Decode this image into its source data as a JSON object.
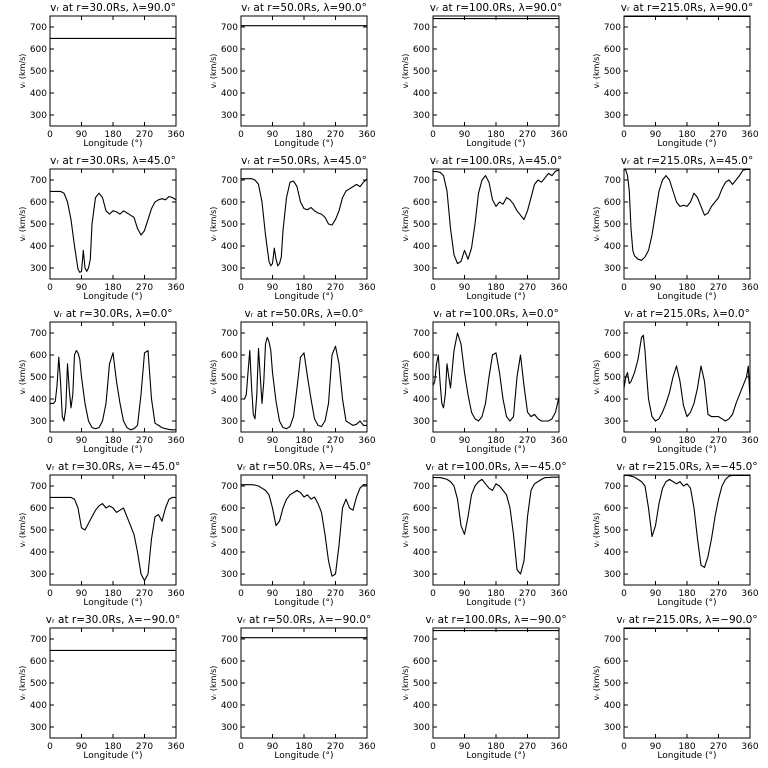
{
  "charts": [
    {
      "type": "line",
      "title": "vᵣ at r=30.0Rs, λ=90.0°",
      "xlabel": "Longitude (°)",
      "ylabel": "vᵣ (km/s)",
      "xlim": [
        0,
        360
      ],
      "ylim": [
        250,
        750
      ],
      "x": [
        0,
        360
      ],
      "y": [
        648,
        648
      ]
    },
    {
      "type": "line",
      "title": "vᵣ at r=50.0Rs, λ=90.0°",
      "xlabel": "Longitude (°)",
      "ylabel": "vᵣ (km/s)",
      "xlim": [
        0,
        360
      ],
      "ylim": [
        250,
        750
      ],
      "x": [
        0,
        360
      ],
      "y": [
        706,
        706
      ]
    },
    {
      "type": "line",
      "title": "vᵣ at r=100.0Rs, λ=90.0°",
      "xlabel": "Longitude (°)",
      "ylabel": "vᵣ (km/s)",
      "xlim": [
        0,
        360
      ],
      "ylim": [
        250,
        750
      ],
      "x": [
        0,
        360
      ],
      "y": [
        738,
        738
      ]
    },
    {
      "type": "line",
      "title": "vᵣ at r=215.0Rs, λ=90.0°",
      "xlabel": "Longitude (°)",
      "ylabel": "vᵣ (km/s)",
      "xlim": [
        0,
        360
      ],
      "ylim": [
        250,
        750
      ],
      "x": [
        0,
        360
      ],
      "y": [
        748,
        748
      ]
    },
    {
      "type": "line",
      "title": "vᵣ at r=30.0Rs, λ=45.0°",
      "xlabel": "Longitude (°)",
      "ylabel": "vᵣ (km/s)",
      "xlim": [
        0,
        360
      ],
      "ylim": [
        250,
        750
      ],
      "x": [
        0,
        10,
        30,
        40,
        50,
        60,
        70,
        80,
        85,
        90,
        95,
        100,
        105,
        110,
        115,
        120,
        130,
        140,
        150,
        160,
        170,
        180,
        190,
        200,
        210,
        220,
        230,
        240,
        250,
        260,
        270,
        280,
        290,
        300,
        310,
        320,
        330,
        340,
        350,
        360
      ],
      "y": [
        648,
        648,
        648,
        640,
        600,
        520,
        400,
        295,
        280,
        285,
        380,
        300,
        285,
        300,
        340,
        500,
        620,
        640,
        620,
        560,
        545,
        560,
        555,
        545,
        560,
        550,
        540,
        530,
        480,
        450,
        470,
        520,
        570,
        600,
        610,
        615,
        610,
        625,
        620,
        610
      ]
    },
    {
      "type": "line",
      "title": "vᵣ at r=50.0Rs, λ=45.0°",
      "xlabel": "Longitude (°)",
      "ylabel": "vᵣ (km/s)",
      "xlim": [
        0,
        360
      ],
      "ylim": [
        250,
        750
      ],
      "x": [
        0,
        10,
        30,
        40,
        50,
        60,
        70,
        80,
        85,
        90,
        95,
        100,
        105,
        110,
        115,
        120,
        130,
        140,
        150,
        160,
        170,
        180,
        190,
        200,
        210,
        220,
        230,
        240,
        250,
        260,
        270,
        280,
        290,
        300,
        310,
        320,
        330,
        340,
        350,
        360
      ],
      "y": [
        706,
        706,
        706,
        700,
        680,
        600,
        450,
        330,
        310,
        320,
        390,
        340,
        310,
        320,
        350,
        470,
        620,
        690,
        695,
        670,
        600,
        570,
        565,
        575,
        560,
        550,
        545,
        530,
        500,
        495,
        520,
        560,
        620,
        650,
        660,
        670,
        680,
        670,
        690,
        705
      ]
    },
    {
      "type": "line",
      "title": "vᵣ at r=100.0Rs, λ=45.0°",
      "xlabel": "Longitude (°)",
      "ylabel": "vᵣ (km/s)",
      "xlim": [
        0,
        360
      ],
      "ylim": [
        250,
        750
      ],
      "x": [
        0,
        10,
        20,
        30,
        40,
        50,
        60,
        70,
        80,
        90,
        100,
        110,
        120,
        130,
        140,
        150,
        160,
        170,
        180,
        190,
        200,
        210,
        220,
        230,
        240,
        250,
        260,
        270,
        280,
        290,
        300,
        310,
        320,
        330,
        340,
        350,
        360
      ],
      "y": [
        738,
        738,
        735,
        720,
        650,
        480,
        360,
        320,
        330,
        380,
        340,
        390,
        500,
        640,
        700,
        720,
        690,
        610,
        580,
        600,
        590,
        620,
        610,
        590,
        560,
        540,
        520,
        560,
        620,
        680,
        700,
        690,
        710,
        730,
        720,
        740,
        745
      ]
    },
    {
      "type": "line",
      "title": "vᵣ at r=215.0Rs, λ=45.0°",
      "xlabel": "Longitude (°)",
      "ylabel": "vᵣ (km/s)",
      "xlim": [
        0,
        360
      ],
      "ylim": [
        250,
        750
      ],
      "x": [
        0,
        5,
        10,
        15,
        20,
        25,
        30,
        40,
        50,
        60,
        70,
        80,
        90,
        100,
        110,
        120,
        130,
        140,
        150,
        160,
        170,
        180,
        190,
        200,
        210,
        220,
        230,
        240,
        250,
        260,
        270,
        280,
        290,
        300,
        310,
        320,
        330,
        340,
        350,
        360
      ],
      "y": [
        748,
        745,
        720,
        650,
        480,
        380,
        355,
        340,
        335,
        350,
        380,
        450,
        550,
        650,
        700,
        720,
        700,
        650,
        600,
        580,
        585,
        580,
        600,
        640,
        620,
        580,
        540,
        550,
        580,
        600,
        620,
        660,
        690,
        700,
        680,
        700,
        720,
        745,
        748,
        748
      ]
    },
    {
      "type": "line",
      "title": "vᵣ at r=30.0Rs, λ=0.0°",
      "xlabel": "Longitude (°)",
      "ylabel": "vᵣ (km/s)",
      "xlim": [
        0,
        360
      ],
      "ylim": [
        250,
        750
      ],
      "x": [
        0,
        10,
        15,
        20,
        25,
        30,
        35,
        40,
        45,
        50,
        55,
        60,
        65,
        70,
        75,
        80,
        85,
        90,
        100,
        110,
        120,
        130,
        140,
        150,
        160,
        170,
        180,
        190,
        200,
        210,
        220,
        230,
        240,
        250,
        260,
        270,
        280,
        290,
        300,
        310,
        320,
        330,
        340,
        350,
        360
      ],
      "y": [
        380,
        380,
        390,
        460,
        590,
        480,
        320,
        300,
        360,
        560,
        440,
        360,
        420,
        600,
        620,
        610,
        580,
        500,
        380,
        300,
        270,
        265,
        270,
        300,
        380,
        560,
        610,
        480,
        380,
        300,
        270,
        260,
        265,
        280,
        420,
        610,
        620,
        400,
        290,
        280,
        270,
        265,
        262,
        260,
        260
      ]
    },
    {
      "type": "line",
      "title": "vᵣ at r=50.0Rs, λ=0.0°",
      "xlabel": "Longitude (°)",
      "ylabel": "vᵣ (km/s)",
      "xlim": [
        0,
        360
      ],
      "ylim": [
        250,
        750
      ],
      "x": [
        0,
        10,
        15,
        20,
        25,
        30,
        35,
        40,
        45,
        50,
        55,
        60,
        65,
        70,
        75,
        80,
        85,
        90,
        100,
        110,
        120,
        130,
        140,
        150,
        160,
        170,
        180,
        190,
        200,
        210,
        220,
        230,
        240,
        250,
        260,
        270,
        280,
        290,
        300,
        310,
        320,
        330,
        340,
        350,
        360
      ],
      "y": [
        400,
        400,
        420,
        520,
        620,
        460,
        330,
        310,
        420,
        630,
        500,
        380,
        480,
        650,
        680,
        660,
        620,
        520,
        390,
        300,
        270,
        265,
        275,
        320,
        450,
        590,
        610,
        500,
        400,
        310,
        280,
        275,
        300,
        380,
        600,
        640,
        560,
        400,
        300,
        290,
        280,
        285,
        300,
        280,
        280
      ]
    },
    {
      "type": "line",
      "title": "vᵣ at r=100.0Rs, λ=0.0°",
      "xlabel": "Longitude (°)",
      "ylabel": "vᵣ (km/s)",
      "xlim": [
        0,
        360
      ],
      "ylim": [
        250,
        750
      ],
      "x": [
        0,
        5,
        10,
        15,
        20,
        25,
        30,
        35,
        40,
        45,
        50,
        60,
        70,
        80,
        90,
        100,
        110,
        120,
        130,
        140,
        150,
        160,
        170,
        180,
        190,
        200,
        210,
        220,
        230,
        240,
        250,
        260,
        270,
        280,
        290,
        300,
        310,
        320,
        330,
        340,
        350,
        360
      ],
      "y": [
        460,
        480,
        560,
        600,
        480,
        380,
        360,
        420,
        560,
        500,
        450,
        620,
        700,
        650,
        520,
        420,
        340,
        310,
        300,
        320,
        380,
        500,
        600,
        610,
        520,
        400,
        320,
        300,
        320,
        500,
        600,
        460,
        340,
        320,
        330,
        310,
        300,
        300,
        300,
        310,
        340,
        410
      ]
    },
    {
      "type": "line",
      "title": "vᵣ at r=215.0Rs, λ=0.0°",
      "xlabel": "Longitude (°)",
      "ylabel": "vᵣ (km/s)",
      "xlim": [
        0,
        360
      ],
      "ylim": [
        250,
        750
      ],
      "x": [
        0,
        5,
        10,
        15,
        20,
        25,
        30,
        40,
        50,
        55,
        60,
        65,
        70,
        80,
        90,
        100,
        110,
        120,
        130,
        140,
        150,
        160,
        170,
        180,
        190,
        200,
        210,
        220,
        230,
        240,
        250,
        260,
        270,
        280,
        290,
        300,
        310,
        320,
        330,
        340,
        350,
        355,
        360
      ],
      "y": [
        450,
        500,
        520,
        470,
        480,
        500,
        520,
        580,
        680,
        690,
        620,
        500,
        400,
        320,
        300,
        310,
        340,
        380,
        430,
        500,
        550,
        480,
        370,
        320,
        340,
        380,
        450,
        550,
        480,
        330,
        320,
        320,
        320,
        310,
        300,
        310,
        330,
        380,
        420,
        460,
        500,
        550,
        400
      ]
    },
    {
      "type": "line",
      "title": "vᵣ at r=30.0Rs, λ=−45.0°",
      "xlabel": "Longitude (°)",
      "ylabel": "vᵣ (km/s)",
      "xlim": [
        0,
        360
      ],
      "ylim": [
        250,
        750
      ],
      "x": [
        0,
        10,
        20,
        30,
        40,
        50,
        60,
        70,
        80,
        90,
        100,
        110,
        120,
        130,
        140,
        150,
        160,
        170,
        180,
        190,
        200,
        210,
        220,
        230,
        240,
        250,
        260,
        270,
        280,
        290,
        300,
        310,
        320,
        330,
        340,
        350,
        360
      ],
      "y": [
        648,
        648,
        648,
        648,
        648,
        648,
        648,
        640,
        600,
        510,
        500,
        530,
        560,
        590,
        610,
        620,
        600,
        610,
        600,
        580,
        590,
        600,
        560,
        520,
        480,
        400,
        300,
        270,
        300,
        460,
        560,
        570,
        540,
        600,
        640,
        648,
        648
      ]
    },
    {
      "type": "line",
      "title": "vᵣ at r=50.0Rs, λ=−45.0°",
      "xlabel": "Longitude (°)",
      "ylabel": "vᵣ (km/s)",
      "xlim": [
        0,
        360
      ],
      "ylim": [
        250,
        750
      ],
      "x": [
        0,
        10,
        20,
        30,
        40,
        50,
        60,
        70,
        80,
        90,
        100,
        110,
        120,
        130,
        140,
        150,
        160,
        170,
        180,
        190,
        200,
        210,
        220,
        230,
        240,
        250,
        260,
        270,
        280,
        290,
        300,
        310,
        320,
        330,
        340,
        350,
        360
      ],
      "y": [
        706,
        706,
        706,
        706,
        704,
        700,
        690,
        680,
        660,
        600,
        520,
        540,
        600,
        640,
        660,
        670,
        680,
        670,
        650,
        660,
        640,
        650,
        620,
        580,
        480,
        360,
        290,
        300,
        430,
        600,
        640,
        600,
        590,
        650,
        690,
        706,
        706
      ]
    },
    {
      "type": "line",
      "title": "vᵣ at r=100.0Rs, λ=−45.0°",
      "xlabel": "Longitude (°)",
      "ylabel": "vᵣ (km/s)",
      "xlim": [
        0,
        360
      ],
      "ylim": [
        250,
        750
      ],
      "x": [
        0,
        10,
        20,
        30,
        40,
        50,
        60,
        70,
        80,
        90,
        100,
        110,
        120,
        130,
        140,
        150,
        160,
        170,
        180,
        190,
        200,
        210,
        220,
        230,
        240,
        250,
        260,
        270,
        280,
        290,
        300,
        310,
        320,
        330,
        340,
        350,
        360
      ],
      "y": [
        738,
        738,
        738,
        735,
        730,
        720,
        700,
        640,
        520,
        480,
        560,
        660,
        700,
        720,
        730,
        710,
        690,
        680,
        710,
        700,
        680,
        660,
        600,
        480,
        320,
        300,
        360,
        560,
        680,
        710,
        720,
        730,
        738,
        738,
        740,
        740,
        740
      ]
    },
    {
      "type": "line",
      "title": "vᵣ at r=215.0Rs, λ=−45.0°",
      "xlabel": "Longitude (°)",
      "ylabel": "vᵣ (km/s)",
      "xlim": [
        0,
        360
      ],
      "ylim": [
        250,
        750
      ],
      "x": [
        0,
        10,
        20,
        30,
        40,
        50,
        60,
        70,
        80,
        90,
        100,
        110,
        120,
        130,
        140,
        150,
        160,
        170,
        180,
        190,
        200,
        210,
        220,
        230,
        240,
        250,
        260,
        270,
        280,
        290,
        300,
        310,
        320,
        330,
        340,
        350,
        360
      ],
      "y": [
        748,
        748,
        745,
        740,
        730,
        720,
        700,
        600,
        470,
        520,
        620,
        690,
        720,
        730,
        720,
        710,
        720,
        700,
        710,
        690,
        600,
        460,
        340,
        330,
        380,
        460,
        560,
        640,
        700,
        730,
        745,
        748,
        748,
        748,
        748,
        748,
        748
      ]
    },
    {
      "type": "line",
      "title": "vᵣ at r=30.0Rs, λ=−90.0°",
      "xlabel": "Longitude (°)",
      "ylabel": "vᵣ (km/s)",
      "xlim": [
        0,
        360
      ],
      "ylim": [
        250,
        750
      ],
      "x": [
        0,
        360
      ],
      "y": [
        648,
        648
      ]
    },
    {
      "type": "line",
      "title": "vᵣ at r=50.0Rs, λ=−90.0°",
      "xlabel": "Longitude (°)",
      "ylabel": "vᵣ (km/s)",
      "xlim": [
        0,
        360
      ],
      "ylim": [
        250,
        750
      ],
      "x": [
        0,
        360
      ],
      "y": [
        706,
        706
      ]
    },
    {
      "type": "line",
      "title": "vᵣ at r=100.0Rs, λ=−90.0°",
      "xlabel": "Longitude (°)",
      "ylabel": "vᵣ (km/s)",
      "xlim": [
        0,
        360
      ],
      "ylim": [
        250,
        750
      ],
      "x": [
        0,
        360
      ],
      "y": [
        738,
        738
      ]
    },
    {
      "type": "line",
      "title": "vᵣ at r=215.0Rs, λ=−90.0°",
      "xlabel": "Longitude (°)",
      "ylabel": "vᵣ (km/s)",
      "xlim": [
        0,
        360
      ],
      "ylim": [
        250,
        750
      ],
      "x": [
        0,
        360
      ],
      "y": [
        748,
        748
      ]
    }
  ],
  "xticks": [
    0,
    90,
    180,
    270,
    360
  ],
  "yticks": [
    300,
    400,
    500,
    600,
    700
  ],
  "line_color": "#000000"
}
